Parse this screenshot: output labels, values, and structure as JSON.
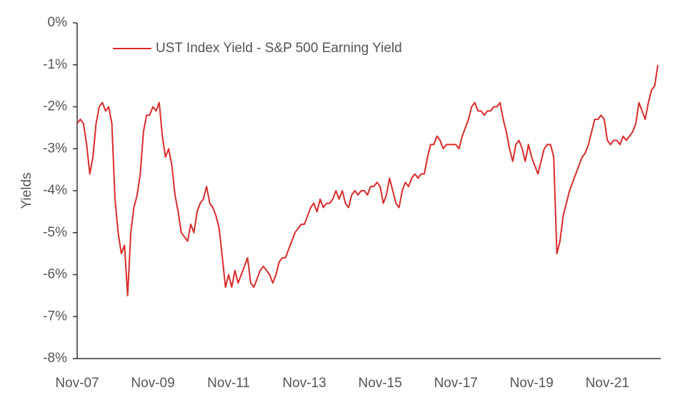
{
  "chart_data": {
    "type": "line",
    "ylabel": "Yields",
    "categories": [
      "Nov-07",
      null,
      null,
      null,
      null,
      null,
      null,
      null,
      null,
      null,
      null,
      null,
      null,
      null,
      null,
      null,
      null,
      null,
      null,
      null,
      null,
      null,
      null,
      null,
      "Nov-09",
      null,
      null,
      null,
      null,
      null,
      null,
      null,
      null,
      null,
      null,
      null,
      null,
      null,
      null,
      null,
      null,
      null,
      null,
      null,
      null,
      null,
      null,
      null,
      "Nov-11",
      null,
      null,
      null,
      null,
      null,
      null,
      null,
      null,
      null,
      null,
      null,
      null,
      null,
      null,
      null,
      null,
      null,
      null,
      null,
      null,
      null,
      null,
      null,
      "Nov-13",
      null,
      null,
      null,
      null,
      null,
      null,
      null,
      null,
      null,
      null,
      null,
      null,
      null,
      null,
      null,
      null,
      null,
      null,
      null,
      null,
      null,
      null,
      null,
      "Nov-15",
      null,
      null,
      null,
      null,
      null,
      null,
      null,
      null,
      null,
      null,
      null,
      null,
      null,
      null,
      null,
      null,
      null,
      null,
      null,
      null,
      null,
      null,
      null,
      "Nov-17",
      null,
      null,
      null,
      null,
      null,
      null,
      null,
      null,
      null,
      null,
      null,
      null,
      null,
      null,
      null,
      null,
      null,
      null,
      null,
      null,
      null,
      null,
      null,
      "Nov-19",
      null,
      null,
      null,
      null,
      null,
      null,
      null,
      null,
      null,
      null,
      null,
      null,
      null,
      null,
      null,
      null,
      null,
      null,
      null,
      null,
      null,
      null,
      null,
      "Nov-21",
      null,
      null,
      null,
      null,
      null,
      null,
      null,
      null,
      null,
      null,
      null,
      null,
      null,
      null,
      null,
      null
    ],
    "series": [
      {
        "name": "UST Index Yield - S&P 500 Earning Yield",
        "color": "#d92b2b",
        "values": [
          -2.4,
          -2.3,
          -2.4,
          -2.9,
          -3.6,
          -3.2,
          -2.4,
          -2.0,
          -1.9,
          -2.1,
          -2.0,
          -2.4,
          -4.2,
          -5.0,
          -5.5,
          -5.3,
          -6.5,
          -5.0,
          -4.4,
          -4.1,
          -3.6,
          -2.6,
          -2.2,
          -2.2,
          -2.0,
          -2.1,
          -1.9,
          -2.7,
          -3.2,
          -3.0,
          -3.4,
          -4.1,
          -4.5,
          -5.0,
          -5.1,
          -5.2,
          -4.8,
          -5.0,
          -4.5,
          -4.3,
          -4.2,
          -3.9,
          -4.3,
          -4.4,
          -4.6,
          -4.9,
          -5.6,
          -6.3,
          -6.0,
          -6.3,
          -5.9,
          -6.2,
          -6.0,
          -5.8,
          -5.6,
          -6.2,
          -6.3,
          -6.1,
          -5.9,
          -5.8,
          -5.9,
          -6.0,
          -6.2,
          -6.0,
          -5.7,
          -5.6,
          -5.6,
          -5.4,
          -5.2,
          -5.0,
          -4.9,
          -4.8,
          -4.8,
          -4.6,
          -4.4,
          -4.3,
          -4.5,
          -4.2,
          -4.4,
          -4.3,
          -4.3,
          -4.2,
          -4.0,
          -4.2,
          -4.0,
          -4.3,
          -4.4,
          -4.1,
          -4.0,
          -4.1,
          -4.0,
          -4.0,
          -4.1,
          -3.9,
          -3.9,
          -3.8,
          -3.9,
          -4.3,
          -4.1,
          -3.7,
          -4.0,
          -4.3,
          -4.4,
          -4.0,
          -3.8,
          -3.9,
          -3.7,
          -3.6,
          -3.7,
          -3.6,
          -3.6,
          -3.2,
          -2.9,
          -2.9,
          -2.7,
          -2.8,
          -3.0,
          -2.9,
          -2.9,
          -2.9,
          -2.9,
          -3.0,
          -2.7,
          -2.5,
          -2.3,
          -2.0,
          -1.9,
          -2.1,
          -2.1,
          -2.2,
          -2.1,
          -2.1,
          -2.0,
          -2.0,
          -1.9,
          -2.3,
          -2.6,
          -3.0,
          -3.3,
          -2.9,
          -2.8,
          -3.0,
          -3.3,
          -2.9,
          -3.2,
          -3.4,
          -3.6,
          -3.3,
          -3.0,
          -2.9,
          -2.9,
          -3.2,
          -5.5,
          -5.2,
          -4.6,
          -4.3,
          -4.0,
          -3.8,
          -3.6,
          -3.4,
          -3.2,
          -3.1,
          -2.9,
          -2.6,
          -2.3,
          -2.3,
          -2.2,
          -2.3,
          -2.8,
          -2.9,
          -2.8,
          -2.8,
          -2.9,
          -2.7,
          -2.8,
          -2.7,
          -2.6,
          -2.4,
          -1.9,
          -2.1,
          -2.3,
          -1.9,
          -1.6,
          -1.5,
          -1.0
        ]
      }
    ],
    "ylim": [
      -8,
      0
    ],
    "yticks": [
      {
        "value": 0,
        "label": "0%"
      },
      {
        "value": -1,
        "label": "-1%"
      },
      {
        "value": -2,
        "label": "-2%"
      },
      {
        "value": -3,
        "label": "-3%"
      },
      {
        "value": -4,
        "label": "-4%"
      },
      {
        "value": -5,
        "label": "-5%"
      },
      {
        "value": -6,
        "label": "-6%"
      },
      {
        "value": -7,
        "label": "-7%"
      },
      {
        "value": -8,
        "label": "-8%"
      }
    ],
    "grid": false,
    "legend": "top-left"
  }
}
